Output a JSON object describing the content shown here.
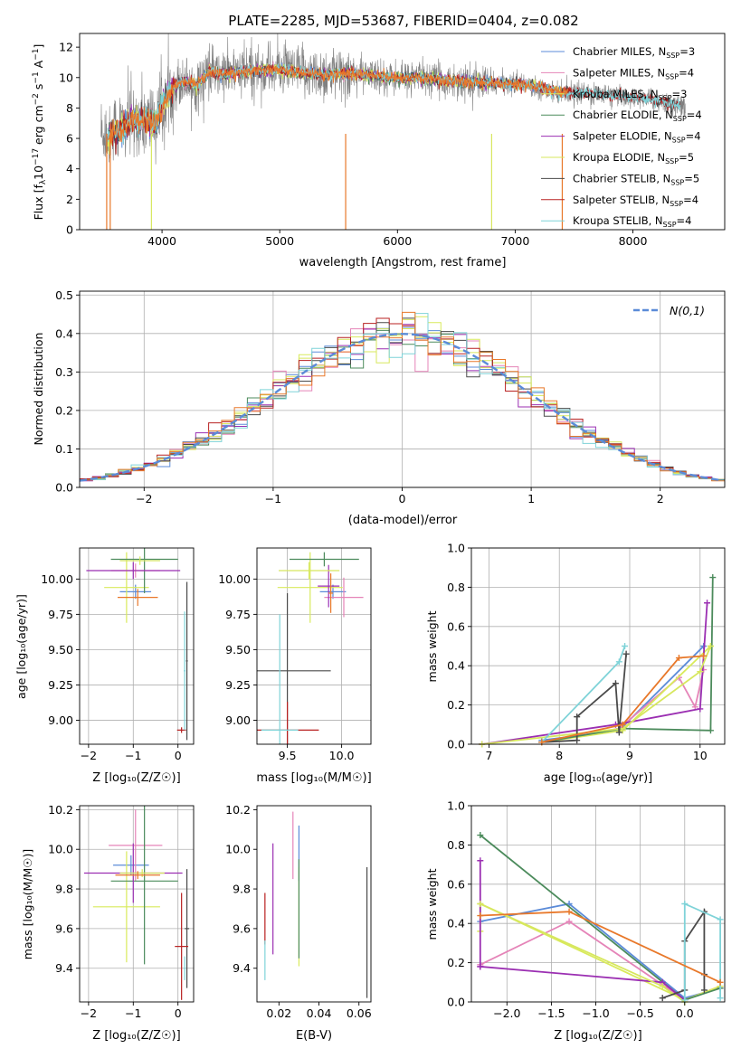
{
  "figure": {
    "title": "PLATE=2285, MJD=53687, FIBERID=0404, z=0.082"
  },
  "colors": {
    "Chabrier MILES": "#5b8bd8",
    "Salpeter MILES": "#e584b8",
    "Kroupa MILES": "#d9ea5b",
    "Chabrier ELODIE": "#4c8b5c",
    "Salpeter ELODIE": "#9b2fb2",
    "Kroupa ELODIE": "#d7e75e",
    "Chabrier STELIB": "#4a4a4a",
    "Salpeter STELIB": "#b82020",
    "Kroupa STELIB": "#7fd3d8",
    "orange": "#e8782a",
    "gaussian": "#5b8bd8",
    "data": "#808080"
  },
  "chart_data": [
    {
      "id": "spectrum",
      "type": "line",
      "xlabel": "wavelength [Angstrom, rest frame]",
      "ylabel": "Flux [f_λ10^-17 erg cm^-2 s^-1 A^-1]",
      "xlim": [
        3300,
        8780
      ],
      "ylim": [
        0,
        12.9
      ],
      "xticks": [
        4000,
        5000,
        6000,
        7000,
        8000
      ],
      "yticks": [
        0,
        2,
        4,
        6,
        8,
        10,
        12
      ],
      "grid": false,
      "legend_position": "right",
      "legend": [
        "Chabrier MILES, N_SSP=3",
        "Salpeter MILES, N_SSP=4",
        "Kroupa MILES, N_SSP=3",
        "Chabrier ELODIE, N_SSP=4",
        "Salpeter ELODIE, N_SSP=4",
        "Kroupa ELODIE, N_SSP=5",
        "Chabrier STELIB, N_SSP=5",
        "Salpeter STELIB, N_SSP=4",
        "Kroupa STELIB, N_SSP=4"
      ],
      "model_continuum": {
        "x": [
          3500,
          3550,
          3650,
          3700,
          3750,
          3850,
          3900,
          3950,
          4000,
          4100,
          4200,
          4300,
          4400,
          4500,
          4700,
          4900,
          5000,
          5200,
          5400,
          5600,
          5800,
          6000,
          6200,
          6400,
          6600,
          6800,
          7000,
          7200,
          7400,
          7600,
          7800,
          8000,
          8200,
          8400
        ],
        "y": [
          6.3,
          6.2,
          6.6,
          6.9,
          7.2,
          7.3,
          7.1,
          7.0,
          8.1,
          9.5,
          9.8,
          9.5,
          10.4,
          10.2,
          10.4,
          10.5,
          10.5,
          10.3,
          10.2,
          10.3,
          10.1,
          10.0,
          10.0,
          9.8,
          9.7,
          9.6,
          9.6,
          9.4,
          9.0,
          9.0,
          8.8,
          8.7,
          8.5,
          8.1
        ]
      }
    },
    {
      "id": "residuals",
      "type": "line",
      "xlabel": "(data-model)/error",
      "ylabel": "Normed distribution",
      "xlim": [
        -2.5,
        2.5
      ],
      "ylim": [
        0,
        0.51
      ],
      "xticks": [
        -2,
        -1,
        0,
        1,
        2
      ],
      "yticks": [
        0.0,
        0.1,
        0.2,
        0.3,
        0.4,
        0.5
      ],
      "grid": true,
      "legend": [
        "N(0,1)"
      ],
      "bin_width": 0.1
    },
    {
      "id": "age_vs_Z",
      "type": "scatter",
      "xlabel": "Z [log10(Z/Z☉)]",
      "ylabel": "age [log10(age/yr)]",
      "xlim": [
        -2.2,
        0.35
      ],
      "ylim": [
        8.83,
        10.22
      ],
      "xticks": [
        -2,
        -1,
        0
      ],
      "yticks": [
        9.0,
        9.25,
        9.5,
        9.75,
        10.0
      ],
      "grid": true,
      "points": [
        {
          "series": "Chabrier MILES",
          "x": -0.95,
          "xerr": 0.35,
          "y": 9.91,
          "yerr": 0.05
        },
        {
          "series": "Salpeter MILES",
          "x": -0.95,
          "xerr": 0.55,
          "y": 10.06,
          "yerr": 0.05
        },
        {
          "series": "Kroupa MILES",
          "x": -1.15,
          "xerr": 0.5,
          "y": 9.94,
          "yerr": 0.25
        },
        {
          "series": "Chabrier ELODIE",
          "x": -0.75,
          "xerr": 0.75,
          "y": 10.14,
          "yerr": 0.24
        },
        {
          "series": "Salpeter ELODIE",
          "x": -1.0,
          "xerr": 1.05,
          "y": 10.06,
          "yerr": 0.06
        },
        {
          "series": "Kroupa ELODIE",
          "x": -0.85,
          "xerr": 0.45,
          "y": 10.13,
          "yerr": 0.03
        },
        {
          "series": "Chabrier STELIB",
          "x": 0.2,
          "xerr": 0.02,
          "y": 9.42,
          "yerr": 0.56
        },
        {
          "series": "Salpeter STELIB",
          "x": 0.08,
          "xerr": 0.1,
          "y": 8.93,
          "yerr": 0.02
        },
        {
          "series": "Kroupa STELIB",
          "x": 0.15,
          "xerr": 0.02,
          "y": 9.35,
          "yerr": 0.42
        },
        {
          "series": "orange",
          "x": -0.9,
          "xerr": 0.45,
          "y": 9.87,
          "yerr": 0.06
        }
      ]
    },
    {
      "id": "age_vs_mass",
      "type": "scatter",
      "xlabel": "mass [log10(M/M☉)]",
      "ylabel": "",
      "xlim": [
        9.22,
        10.27
      ],
      "ylim": [
        8.83,
        10.22
      ],
      "xticks": [
        9.5,
        10.0
      ],
      "yticks": [
        9.0,
        9.25,
        9.5,
        9.75,
        10.0
      ],
      "grid": true,
      "points": [
        {
          "series": "Chabrier MILES",
          "x": 9.92,
          "xerr": 0.12,
          "y": 9.91,
          "yerr": 0.05
        },
        {
          "series": "Salpeter MILES",
          "x": 10.02,
          "xerr": 0.18,
          "y": 9.87,
          "yerr": 0.14
        },
        {
          "series": "Kroupa MILES",
          "x": 9.71,
          "xerr": 0.3,
          "y": 9.94,
          "yerr": 0.25
        },
        {
          "series": "Chabrier ELODIE",
          "x": 9.84,
          "xerr": 0.32,
          "y": 10.14,
          "yerr": 0.05
        },
        {
          "series": "Salpeter ELODIE",
          "x": 9.88,
          "xerr": 0.1,
          "y": 9.95,
          "yerr": 0.15
        },
        {
          "series": "Kroupa ELODIE",
          "x": 9.7,
          "xerr": 0.28,
          "y": 10.06,
          "yerr": 0.06
        },
        {
          "series": "Chabrier STELIB",
          "x": 9.5,
          "xerr": 0.4,
          "y": 9.35,
          "yerr": 0.55
        },
        {
          "series": "Salpeter STELIB",
          "x": 9.5,
          "xerr": 0.29,
          "y": 8.93,
          "yerr": 0.2
        },
        {
          "series": "Kroupa STELIB",
          "x": 9.43,
          "xerr": 0.17,
          "y": 8.93,
          "yerr": 0.82
        },
        {
          "series": "orange",
          "x": 9.9,
          "xerr": 0.02,
          "y": 9.9,
          "yerr": 0.14
        }
      ]
    },
    {
      "id": "mass_weight_vs_age",
      "type": "line",
      "xlabel": "age [log10(age/yr)]",
      "ylabel": "mass weight",
      "xlim": [
        6.75,
        10.35
      ],
      "ylim": [
        0,
        1
      ],
      "xticks": [
        7,
        8,
        9,
        10
      ],
      "yticks": [
        0.0,
        0.2,
        0.4,
        0.6,
        0.8,
        1.0
      ],
      "grid": true,
      "series": [
        {
          "name": "Chabrier MILES",
          "x": [
            7.75,
            8.85,
            10.05
          ],
          "y": [
            0.02,
            0.07,
            0.5
          ]
        },
        {
          "name": "Salpeter MILES",
          "x": [
            7.75,
            8.85,
            9.7,
            9.93,
            10.05
          ],
          "y": [
            0.01,
            0.08,
            0.34,
            0.19,
            0.38
          ]
        },
        {
          "name": "Kroupa MILES",
          "x": [
            7.75,
            8.9,
            10.15
          ],
          "y": [
            0.01,
            0.07,
            0.5
          ]
        },
        {
          "name": "Chabrier ELODIE",
          "x": [
            7.75,
            8.9,
            10.15,
            10.18
          ],
          "y": [
            0.01,
            0.08,
            0.07,
            0.85
          ]
        },
        {
          "name": "Salpeter ELODIE",
          "x": [
            6.9,
            8.8,
            10.0,
            10.1
          ],
          "y": [
            0.0,
            0.1,
            0.18,
            0.72
          ]
        },
        {
          "name": "Kroupa ELODIE",
          "x": [
            6.9,
            8.9,
            10.0,
            10.15
          ],
          "y": [
            0.0,
            0.08,
            0.37,
            0.5
          ]
        },
        {
          "name": "Chabrier STELIB",
          "x": [
            7.75,
            8.25,
            8.25,
            8.8,
            8.85,
            8.95
          ],
          "y": [
            0.01,
            0.02,
            0.14,
            0.31,
            0.06,
            0.46
          ]
        },
        {
          "name": "Kroupa STELIB",
          "x": [
            7.75,
            8.85,
            8.93
          ],
          "y": [
            0.01,
            0.42,
            0.5
          ]
        },
        {
          "name": "orange",
          "x": [
            7.75,
            8.9,
            9.7,
            10.05
          ],
          "y": [
            0.01,
            0.1,
            0.44,
            0.45
          ]
        }
      ]
    },
    {
      "id": "mass_vs_Z",
      "type": "scatter",
      "xlabel": "Z [log10(Z/Z☉)]",
      "ylabel": "mass [log10(M/M☉)]",
      "xlim": [
        -2.2,
        0.35
      ],
      "ylim": [
        9.23,
        10.22
      ],
      "xticks": [
        -2,
        -1,
        0
      ],
      "yticks": [
        9.4,
        9.6,
        9.8,
        10.0,
        10.2
      ],
      "grid": true,
      "points": [
        {
          "series": "Chabrier MILES",
          "x": -1.05,
          "xerr": 0.4,
          "y": 9.92,
          "yerr": 0.05
        },
        {
          "series": "Salpeter MILES",
          "x": -0.95,
          "xerr": 0.6,
          "y": 10.02,
          "yerr": 0.18
        },
        {
          "series": "Kroupa MILES",
          "x": -1.15,
          "xerr": 0.75,
          "y": 9.71,
          "yerr": 0.28
        },
        {
          "series": "Chabrier ELODIE",
          "x": -0.75,
          "xerr": 0.75,
          "y": 9.84,
          "yerr": 0.42
        },
        {
          "series": "Salpeter ELODIE",
          "x": -1.0,
          "xerr": 1.1,
          "y": 9.88,
          "yerr": 0.15
        },
        {
          "series": "Kroupa ELODIE",
          "x": -0.8,
          "xerr": 0.5,
          "y": 9.88,
          "yerr": 0.02
        },
        {
          "series": "Chabrier STELIB",
          "x": 0.2,
          "xerr": 0.05,
          "y": 9.6,
          "yerr": 0.3
        },
        {
          "series": "Salpeter STELIB",
          "x": 0.08,
          "xerr": 0.15,
          "y": 9.51,
          "yerr": 0.27
        },
        {
          "series": "Kroupa STELIB",
          "x": 0.15,
          "xerr": 0.02,
          "y": 9.4,
          "yerr": 0.06
        },
        {
          "series": "orange",
          "x": -0.9,
          "xerr": 0.5,
          "y": 9.87,
          "yerr": 0.02
        }
      ]
    },
    {
      "id": "mass_vs_EBV",
      "type": "scatter",
      "xlabel": "E(B-V)",
      "ylabel": "",
      "xlim": [
        0.009,
        0.066
      ],
      "ylim": [
        9.23,
        10.22
      ],
      "xticks": [
        0.02,
        0.04,
        0.06
      ],
      "yticks": [
        9.4,
        9.6,
        9.8,
        10.0,
        10.2
      ],
      "grid": false,
      "points": [
        {
          "series": "Chabrier MILES",
          "x": 0.03,
          "y": 9.98,
          "yerr": 0.14
        },
        {
          "series": "Salpeter MILES",
          "x": 0.027,
          "y": 10.02,
          "yerr": 0.17
        },
        {
          "series": "Kroupa MILES",
          "x": 0.03,
          "y": 9.66,
          "yerr": 0.25
        },
        {
          "series": "Chabrier ELODIE",
          "x": 0.03,
          "y": 9.7,
          "yerr": 0.25
        },
        {
          "series": "Salpeter ELODIE",
          "x": 0.017,
          "y": 9.75,
          "yerr": 0.28
        },
        {
          "series": "Chabrier STELIB",
          "x": 0.064,
          "y": 9.58,
          "yerr": 0.33
        },
        {
          "series": "Salpeter STELIB",
          "x": 0.013,
          "y": 9.65,
          "yerr": 0.13
        },
        {
          "series": "Kroupa STELIB",
          "x": 0.013,
          "y": 9.44,
          "yerr": 0.1
        }
      ]
    },
    {
      "id": "mass_weight_vs_Z",
      "type": "line",
      "xlabel": "Z [log10(Z/Z☉)]",
      "ylabel": "mass weight",
      "xlim": [
        -2.4,
        0.45
      ],
      "ylim": [
        0,
        1
      ],
      "xticks": [
        -2.0,
        -1.5,
        -1.0,
        -0.5,
        0.0
      ],
      "yticks": [
        0.0,
        0.2,
        0.4,
        0.6,
        0.8,
        1.0
      ],
      "grid": true,
      "series": [
        {
          "name": "Chabrier MILES",
          "x": [
            -2.3,
            -1.3,
            0.0,
            0.4
          ],
          "y": [
            0.41,
            0.5,
            0.02,
            0.07
          ]
        },
        {
          "name": "Salpeter MILES",
          "x": [
            -2.3,
            -1.3,
            0.0,
            0.4
          ],
          "y": [
            0.19,
            0.41,
            0.01,
            0.08
          ]
        },
        {
          "name": "Kroupa MILES",
          "x": [
            -2.3,
            -2.3,
            0.0,
            0.4
          ],
          "y": [
            0.36,
            0.5,
            0.01,
            0.08
          ]
        },
        {
          "name": "Chabrier ELODIE",
          "x": [
            -2.3,
            0.0,
            0.4
          ],
          "y": [
            0.85,
            0.01,
            0.07
          ]
        },
        {
          "name": "Salpeter ELODIE",
          "x": [
            -2.3,
            -2.3,
            -2.3,
            -0.25,
            0.0
          ],
          "y": [
            0.72,
            0.18,
            0.18,
            0.1,
            0.01
          ]
        },
        {
          "name": "Kroupa ELODIE",
          "x": [
            -2.3,
            -0.25,
            0.0
          ],
          "y": [
            0.5,
            0.08,
            0.0
          ]
        },
        {
          "name": "Chabrier STELIB",
          "x": [
            -0.25,
            0.0,
            0.0,
            0.22,
            0.22,
            0.22
          ],
          "y": [
            0.02,
            0.06,
            0.31,
            0.46,
            0.14,
            0.06
          ]
        },
        {
          "name": "Kroupa STELIB",
          "x": [
            0.0,
            0.0,
            0.4,
            0.4
          ],
          "y": [
            0.01,
            0.5,
            0.42,
            0.02
          ]
        },
        {
          "name": "orange",
          "x": [
            -2.3,
            -1.3,
            0.4
          ],
          "y": [
            0.44,
            0.46,
            0.1
          ]
        }
      ]
    }
  ]
}
